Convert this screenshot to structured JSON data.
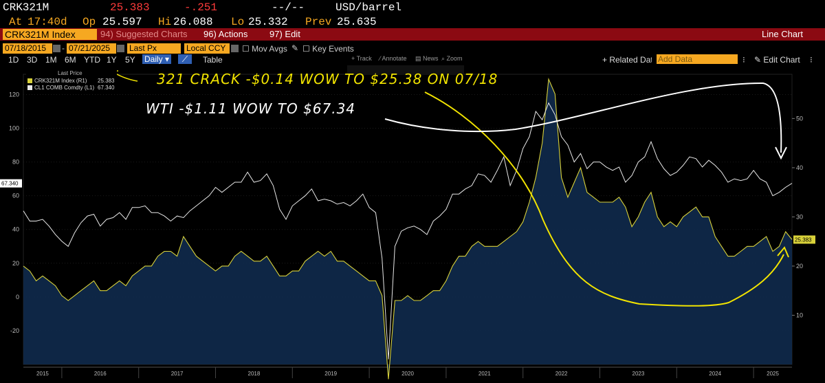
{
  "quote": {
    "ticker": "CRK321M",
    "last": "25.383",
    "change": "-.251",
    "dashes": "--/--",
    "unit": "USD/barrel",
    "at_label": "At",
    "at_value": "17:40d",
    "op_label": "Op",
    "op_value": "25.597",
    "hi_label": "Hi",
    "hi_value": "26.088",
    "lo_label": "Lo",
    "lo_value": "25.332",
    "prev_label": "Prev",
    "prev_value": "25.635"
  },
  "menu": {
    "security": "CRK321M Index",
    "suggested": "94) Suggested Charts",
    "actions": "96) Actions",
    "edit": "97) Edit",
    "chart_type": "Line Chart"
  },
  "options": {
    "start_date": "07/18/2015",
    "end_date": "07/21/2025",
    "field": "Last Px",
    "currency": "Local CCY",
    "mov_avgs": "Mov Avgs",
    "key_events": "Key Events"
  },
  "range": {
    "buttons": [
      "1D",
      "3D",
      "1M",
      "6M",
      "YTD",
      "1Y",
      "5Y",
      "Daily"
    ],
    "table": "Table",
    "related": "+ Related Data",
    "add_data": "Add Data",
    "edit_chart": "Edit Chart",
    "tools": [
      "Track",
      "Annotate",
      "News",
      "Zoom"
    ]
  },
  "legend": {
    "title": "Last Price",
    "rows": [
      {
        "name": "CRK321M Index (R1)",
        "value": "25.383"
      },
      {
        "name": "CL1 COMB Comdty (L1)",
        "value": "67.340"
      }
    ]
  },
  "annotations": {
    "line1": "321 CRACK -$0.14 WOW TO $25.38 ON 07/18",
    "line2": "WTI -$1.11 WOW TO $67.34"
  },
  "colors": {
    "crack": "#d9d23a",
    "crack_fill": "#0f2a4d",
    "wti": "#e8e8e8",
    "annotation": "#f2e400",
    "accent": "#f6a821",
    "menu": "#8b0a12"
  },
  "chart_data": {
    "type": "line",
    "x_start": "2015-07",
    "x_end": "2025-07",
    "xticks": [
      "2015",
      "2016",
      "2017",
      "2018",
      "2019",
      "2020",
      "2021",
      "2022",
      "2023",
      "2024",
      "2025"
    ],
    "left_axis": {
      "ticks": [
        -20,
        0,
        20,
        40,
        60,
        80,
        100,
        120
      ],
      "ylim": [
        -40,
        132
      ],
      "last_label": "67.340"
    },
    "right_axis": {
      "ticks": [
        10,
        20,
        30,
        40,
        50
      ],
      "ylim": [
        0,
        59
      ],
      "last_label": "25.383"
    },
    "series": [
      {
        "name": "CL1 COMB Comdty (L1)",
        "axis": "left",
        "x": [
          "2015-07",
          "2015-08",
          "2015-09",
          "2015-10",
          "2015-11",
          "2015-12",
          "2016-01",
          "2016-02",
          "2016-03",
          "2016-04",
          "2016-05",
          "2016-06",
          "2016-07",
          "2016-08",
          "2016-09",
          "2016-10",
          "2016-11",
          "2016-12",
          "2017-01",
          "2017-02",
          "2017-03",
          "2017-04",
          "2017-05",
          "2017-06",
          "2017-07",
          "2017-08",
          "2017-09",
          "2017-10",
          "2017-11",
          "2017-12",
          "2018-01",
          "2018-02",
          "2018-03",
          "2018-04",
          "2018-05",
          "2018-06",
          "2018-07",
          "2018-08",
          "2018-09",
          "2018-10",
          "2018-11",
          "2018-12",
          "2019-01",
          "2019-02",
          "2019-03",
          "2019-04",
          "2019-05",
          "2019-06",
          "2019-07",
          "2019-08",
          "2019-09",
          "2019-10",
          "2019-11",
          "2019-12",
          "2020-01",
          "2020-02",
          "2020-03",
          "2020-04",
          "2020-05",
          "2020-06",
          "2020-07",
          "2020-08",
          "2020-09",
          "2020-10",
          "2020-11",
          "2020-12",
          "2021-01",
          "2021-02",
          "2021-03",
          "2021-04",
          "2021-05",
          "2021-06",
          "2021-07",
          "2021-08",
          "2021-09",
          "2021-10",
          "2021-11",
          "2021-12",
          "2022-01",
          "2022-02",
          "2022-03",
          "2022-04",
          "2022-05",
          "2022-06",
          "2022-07",
          "2022-08",
          "2022-09",
          "2022-10",
          "2022-11",
          "2022-12",
          "2023-01",
          "2023-02",
          "2023-03",
          "2023-04",
          "2023-05",
          "2023-06",
          "2023-07",
          "2023-08",
          "2023-09",
          "2023-10",
          "2023-11",
          "2023-12",
          "2024-01",
          "2024-02",
          "2024-03",
          "2024-04",
          "2024-05",
          "2024-06",
          "2024-07",
          "2024-08",
          "2024-09",
          "2024-10",
          "2024-11",
          "2024-12",
          "2025-01",
          "2025-02",
          "2025-03",
          "2025-04",
          "2025-05",
          "2025-06",
          "2025-07"
        ],
        "values": [
          51,
          45,
          45,
          46,
          42,
          37,
          33,
          30,
          38,
          44,
          48,
          49,
          42,
          46,
          47,
          50,
          46,
          53,
          53,
          54,
          50,
          50,
          48,
          45,
          48,
          47,
          51,
          54,
          57,
          60,
          65,
          62,
          65,
          68,
          68,
          74,
          68,
          69,
          73,
          66,
          52,
          46,
          54,
          57,
          60,
          64,
          57,
          58,
          57,
          55,
          56,
          54,
          57,
          61,
          53,
          50,
          23,
          -37,
          30,
          39,
          41,
          42,
          40,
          37,
          45,
          48,
          52,
          61,
          61,
          64,
          66,
          73,
          72,
          68,
          75,
          83,
          66,
          75,
          88,
          95,
          110,
          105,
          115,
          108,
          95,
          90,
          80,
          85,
          76,
          80,
          80,
          77,
          75,
          77,
          68,
          72,
          80,
          83,
          92,
          82,
          76,
          72,
          74,
          78,
          83,
          82,
          77,
          81,
          78,
          74,
          68,
          70,
          69,
          70,
          75,
          70,
          68,
          60,
          62,
          65,
          67.34
        ]
      },
      {
        "name": "CRK321M Index (R1)",
        "axis": "right",
        "x": [
          "2015-07",
          "2015-08",
          "2015-09",
          "2015-10",
          "2015-11",
          "2015-12",
          "2016-01",
          "2016-02",
          "2016-03",
          "2016-04",
          "2016-05",
          "2016-06",
          "2016-07",
          "2016-08",
          "2016-09",
          "2016-10",
          "2016-11",
          "2016-12",
          "2017-01",
          "2017-02",
          "2017-03",
          "2017-04",
          "2017-05",
          "2017-06",
          "2017-07",
          "2017-08",
          "2017-09",
          "2017-10",
          "2017-11",
          "2017-12",
          "2018-01",
          "2018-02",
          "2018-03",
          "2018-04",
          "2018-05",
          "2018-06",
          "2018-07",
          "2018-08",
          "2018-09",
          "2018-10",
          "2018-11",
          "2018-12",
          "2019-01",
          "2019-02",
          "2019-03",
          "2019-04",
          "2019-05",
          "2019-06",
          "2019-07",
          "2019-08",
          "2019-09",
          "2019-10",
          "2019-11",
          "2019-12",
          "2020-01",
          "2020-02",
          "2020-03",
          "2020-04",
          "2020-05",
          "2020-06",
          "2020-07",
          "2020-08",
          "2020-09",
          "2020-10",
          "2020-11",
          "2020-12",
          "2021-01",
          "2021-02",
          "2021-03",
          "2021-04",
          "2021-05",
          "2021-06",
          "2021-07",
          "2021-08",
          "2021-09",
          "2021-10",
          "2021-11",
          "2021-12",
          "2022-01",
          "2022-02",
          "2022-03",
          "2022-04",
          "2022-05",
          "2022-06",
          "2022-07",
          "2022-08",
          "2022-09",
          "2022-10",
          "2022-11",
          "2022-12",
          "2023-01",
          "2023-02",
          "2023-03",
          "2023-04",
          "2023-05",
          "2023-06",
          "2023-07",
          "2023-08",
          "2023-09",
          "2023-10",
          "2023-11",
          "2023-12",
          "2024-01",
          "2024-02",
          "2024-03",
          "2024-04",
          "2024-05",
          "2024-06",
          "2024-07",
          "2024-08",
          "2024-09",
          "2024-10",
          "2024-11",
          "2024-12",
          "2025-01",
          "2025-02",
          "2025-03",
          "2025-04",
          "2025-05",
          "2025-06",
          "2025-07"
        ],
        "values": [
          20,
          19,
          17,
          18,
          17,
          16,
          14,
          13,
          14,
          15,
          16,
          17,
          15,
          15,
          16,
          17,
          16,
          18,
          19,
          20,
          20,
          22,
          23,
          23,
          22,
          26,
          24,
          22,
          21,
          20,
          19,
          20,
          20,
          22,
          23,
          22,
          21,
          21,
          22,
          20,
          18,
          18,
          19,
          19,
          21,
          22,
          23,
          22,
          23,
          21,
          21,
          20,
          19,
          18,
          17,
          17,
          14,
          -3,
          13,
          13,
          14,
          13,
          13,
          14,
          15,
          15,
          17,
          20,
          22,
          22,
          24,
          25,
          24,
          24,
          24,
          25,
          26,
          27,
          29,
          33,
          38,
          45,
          58,
          55,
          38,
          34,
          37,
          40,
          35,
          34,
          33,
          33,
          33,
          34,
          32,
          28,
          30,
          33,
          35,
          30,
          28,
          29,
          28,
          30,
          31,
          32,
          30,
          30,
          26,
          24,
          22,
          22,
          23,
          24,
          24,
          25,
          26,
          23,
          24,
          27,
          25.383
        ]
      }
    ]
  }
}
